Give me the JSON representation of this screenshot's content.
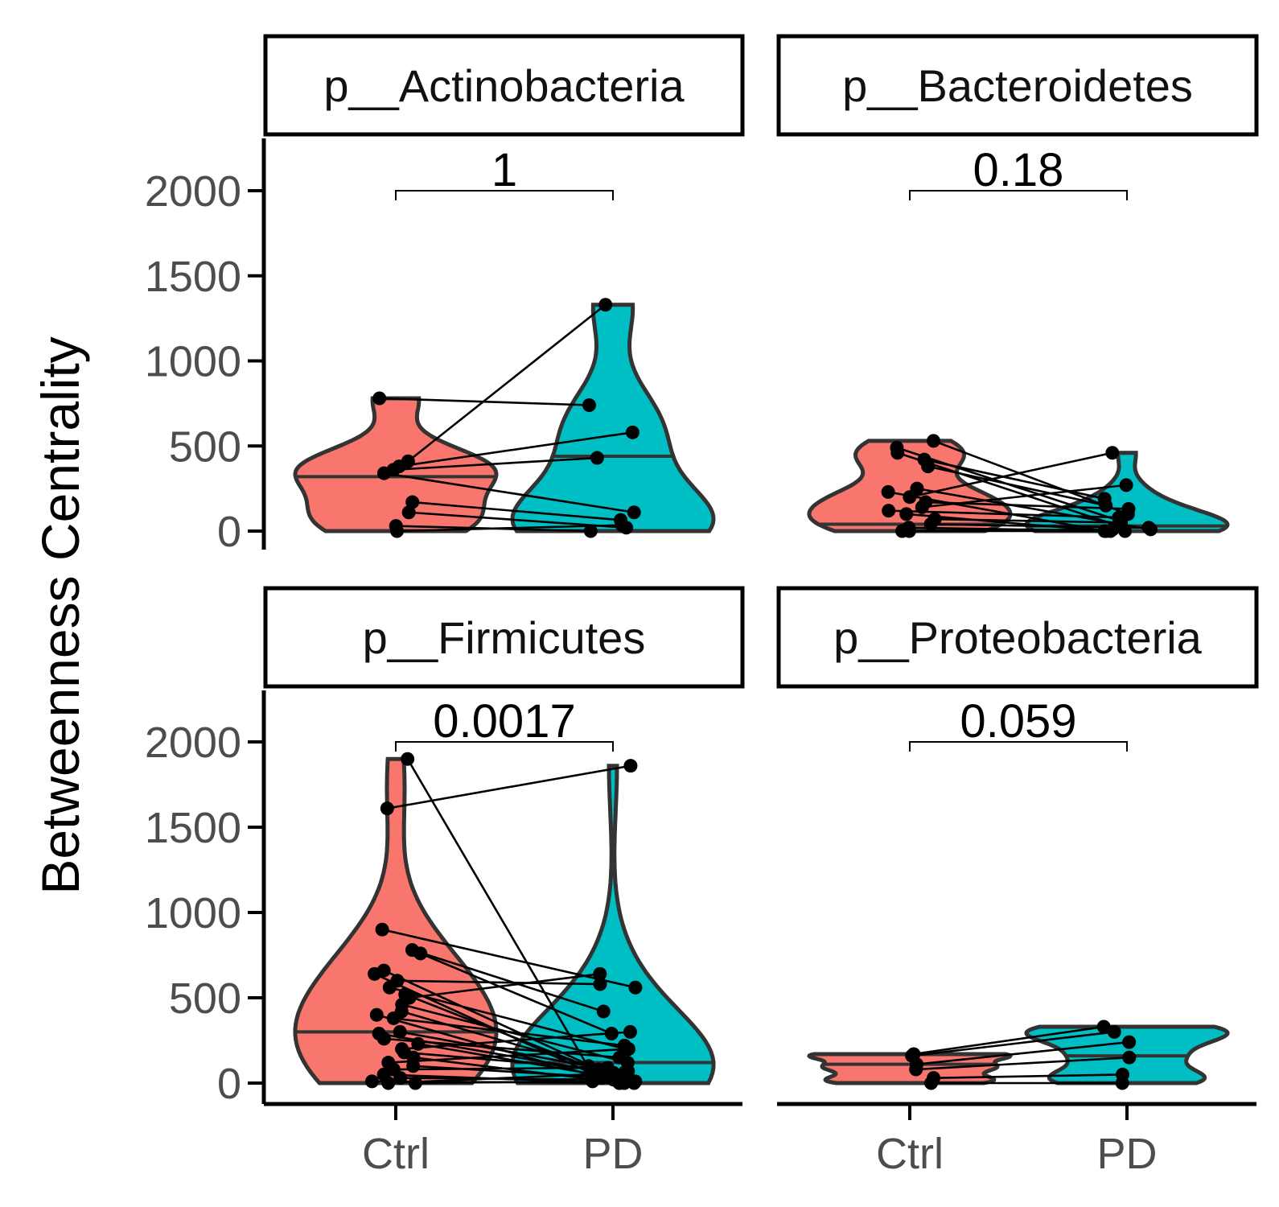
{
  "chart_data": {
    "type": "violin",
    "ylabel": "Betweenness Centrality",
    "ylim": [
      0,
      2000
    ],
    "yticks": [
      0,
      500,
      1000,
      1500,
      2000
    ],
    "categories": [
      "Ctrl",
      "PD"
    ],
    "colors": {
      "Ctrl": "#F8766D",
      "PD": "#00BFC4"
    },
    "facets": [
      {
        "label": "p__Actinobacteria",
        "pvalue": "1",
        "median": {
          "Ctrl": 320,
          "PD": 440
        },
        "pairs": [
          [
            780,
            740
          ],
          [
            410,
            1330
          ],
          [
            380,
            580
          ],
          [
            360,
            430
          ],
          [
            340,
            110
          ],
          [
            170,
            65
          ],
          [
            110,
            20
          ],
          [
            30,
            0
          ],
          [
            0,
            35
          ]
        ]
      },
      {
        "label": "p__Bacteroidetes",
        "pvalue": "0.18",
        "median": {
          "Ctrl": 40,
          "PD": 30
        },
        "pairs": [
          [
            530,
            100
          ],
          [
            490,
            60
          ],
          [
            460,
            30
          ],
          [
            420,
            190
          ],
          [
            380,
            150
          ],
          [
            250,
            10
          ],
          [
            230,
            0
          ],
          [
            200,
            460
          ],
          [
            170,
            130
          ],
          [
            140,
            270
          ],
          [
            120,
            80
          ],
          [
            100,
            0
          ],
          [
            70,
            50
          ],
          [
            40,
            20
          ],
          [
            20,
            0
          ],
          [
            0,
            10
          ],
          [
            0,
            0
          ]
        ]
      },
      {
        "label": "p__Firmicutes",
        "pvalue": "0.0017",
        "median": {
          "Ctrl": 300,
          "PD": 120
        },
        "pairs": [
          [
            1900,
            50
          ],
          [
            1610,
            1860
          ],
          [
            900,
            560
          ],
          [
            780,
            420
          ],
          [
            760,
            290
          ],
          [
            660,
            80
          ],
          [
            640,
            30
          ],
          [
            600,
            580
          ],
          [
            560,
            200
          ],
          [
            520,
            20
          ],
          [
            500,
            640
          ],
          [
            460,
            120
          ],
          [
            420,
            60
          ],
          [
            400,
            0
          ],
          [
            380,
            220
          ],
          [
            300,
            100
          ],
          [
            290,
            40
          ],
          [
            260,
            150
          ],
          [
            230,
            10
          ],
          [
            200,
            300
          ],
          [
            180,
            70
          ],
          [
            150,
            0
          ],
          [
            120,
            200
          ],
          [
            100,
            30
          ],
          [
            80,
            90
          ],
          [
            50,
            0
          ],
          [
            30,
            20
          ],
          [
            10,
            0
          ],
          [
            0,
            60
          ],
          [
            0,
            10
          ]
        ]
      },
      {
        "label": "p__Proteobacteria",
        "pvalue": "0.059",
        "median": {
          "Ctrl": 110,
          "PD": 160
        },
        "pairs": [
          [
            170,
            330
          ],
          [
            160,
            300
          ],
          [
            110,
            240
          ],
          [
            80,
            150
          ],
          [
            30,
            50
          ],
          [
            0,
            0
          ]
        ]
      }
    ]
  }
}
